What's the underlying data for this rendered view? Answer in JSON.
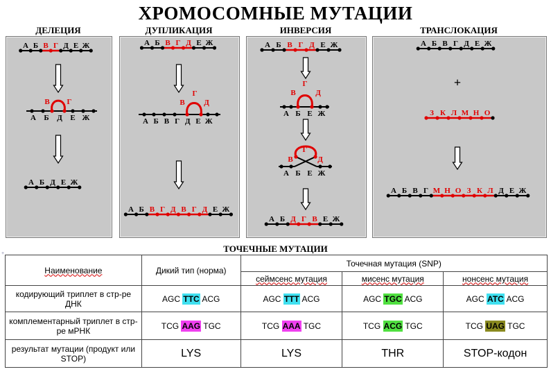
{
  "title": "ХРОМОСОМНЫЕ МУТАЦИИ",
  "sections": {
    "deletion": {
      "label": "ДЕЛЕЦИЯ",
      "top": "АБВГДЕЖ",
      "loop": "ВГ",
      "bottom": "АБДЕЖ",
      "result": "АБДЕЖ"
    },
    "duplication": {
      "label": "ДУПЛИКАЦИЯ",
      "top": "АБВГДЕЖ",
      "loop": "ГВД",
      "middle": "АБВГДЕЖ",
      "result": "АБВГДВГДЕЖ"
    },
    "inversion": {
      "label": "ИНВЕРСИЯ",
      "top": "АБВГДЕЖ",
      "loop": "ВГД",
      "middle": "АБЕЖ",
      "result": "АБДГВЕЖ"
    },
    "translocation": {
      "label": "ТРАНСЛОКАЦИЯ",
      "top": "АБВГДЕЖ",
      "plus": "+",
      "second": "ЗКЛМНО",
      "result": "АБВГМНОЗКЛДЕЖ"
    }
  },
  "point_mutations": {
    "title": "ТОЧЕЧНЫЕ МУТАЦИИ",
    "header": {
      "name": "Наименование",
      "wild": "Дикий тип (норма)",
      "snp": "Точечная мутация (SNP)",
      "same": "сеймсенс мутация",
      "missense": "мисенс мутация",
      "nonsense": "нонсенс мутация"
    },
    "rows": [
      {
        "label": "кодирующий триплет в стр-ре ДНК",
        "cells": [
          {
            "pre": "AGC",
            "hl": "TTC",
            "post": "ACG"
          },
          {
            "pre": "AGC",
            "hl": "TTT",
            "post": "ACG"
          },
          {
            "pre": "AGC",
            "hl": "TGC",
            "post": "ACG"
          },
          {
            "pre": "AGC",
            "hl": "ATC",
            "post": "ACG"
          }
        ]
      },
      {
        "label": "комплементарный триплет в стр-ре мРНК",
        "cells": [
          {
            "pre": "TCG",
            "hl": "AAG",
            "post": "TGC"
          },
          {
            "pre": "TCG",
            "hl": "AAA",
            "post": "TGC"
          },
          {
            "pre": "TCG",
            "hl": "ACG",
            "post": "TGC"
          },
          {
            "pre": "TCG",
            "hl": "UAG",
            "post": "TGC"
          }
        ]
      },
      {
        "label": "результат мутации (продукт или STOP)",
        "cells": [
          "LYS",
          "LYS",
          "THR",
          "STOP-кодон"
        ]
      }
    ]
  },
  "colors": {
    "red": "#e00000",
    "panel": "#c8c8c8",
    "cyan": "#40e0f0",
    "magenta": "#f040f0",
    "green": "#50e040",
    "olive": "#8a8a20"
  }
}
